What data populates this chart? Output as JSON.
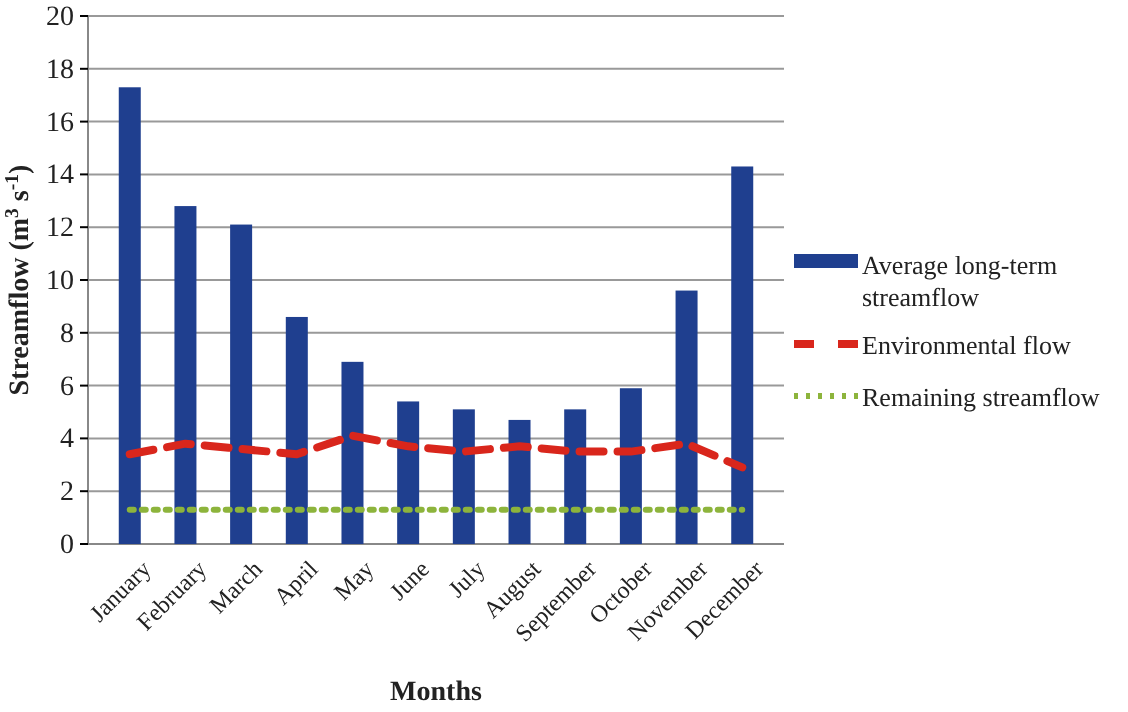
{
  "chart_data": {
    "type": "bar",
    "xlabel": "Months",
    "ylabel": "Streamflow (m$^{3}$ s$^{-1}$)",
    "categories": [
      "January",
      "February",
      "March",
      "April",
      "May",
      "June",
      "July",
      "August",
      "September",
      "October",
      "November",
      "December"
    ],
    "series": [
      {
        "name": "Average long-term streamflow",
        "color": "#1f3f8f",
        "values": [
          17.3,
          12.8,
          12.1,
          8.6,
          6.9,
          5.4,
          5.1,
          4.7,
          5.1,
          5.9,
          9.6,
          14.3
        ]
      },
      {
        "name": "Environmental flow",
        "type": "line",
        "line_style": "dashed",
        "color": "#d9261c",
        "values": [
          3.4,
          3.8,
          3.6,
          3.4,
          4.1,
          3.7,
          3.5,
          3.7,
          3.5,
          3.5,
          3.8,
          2.9
        ]
      },
      {
        "name": "Remaining streamflow",
        "type": "line",
        "line_style": "dotted",
        "color": "#8db43c",
        "values": [
          1.3,
          1.3,
          1.3,
          1.3,
          1.3,
          1.3,
          1.3,
          1.3,
          1.3,
          1.3,
          1.3,
          1.3
        ]
      }
    ],
    "ylim": [
      0,
      20
    ],
    "yticks": [
      0,
      2,
      4,
      6,
      8,
      10,
      12,
      14,
      16,
      18,
      20
    ],
    "grid": "y",
    "legend": "right"
  }
}
